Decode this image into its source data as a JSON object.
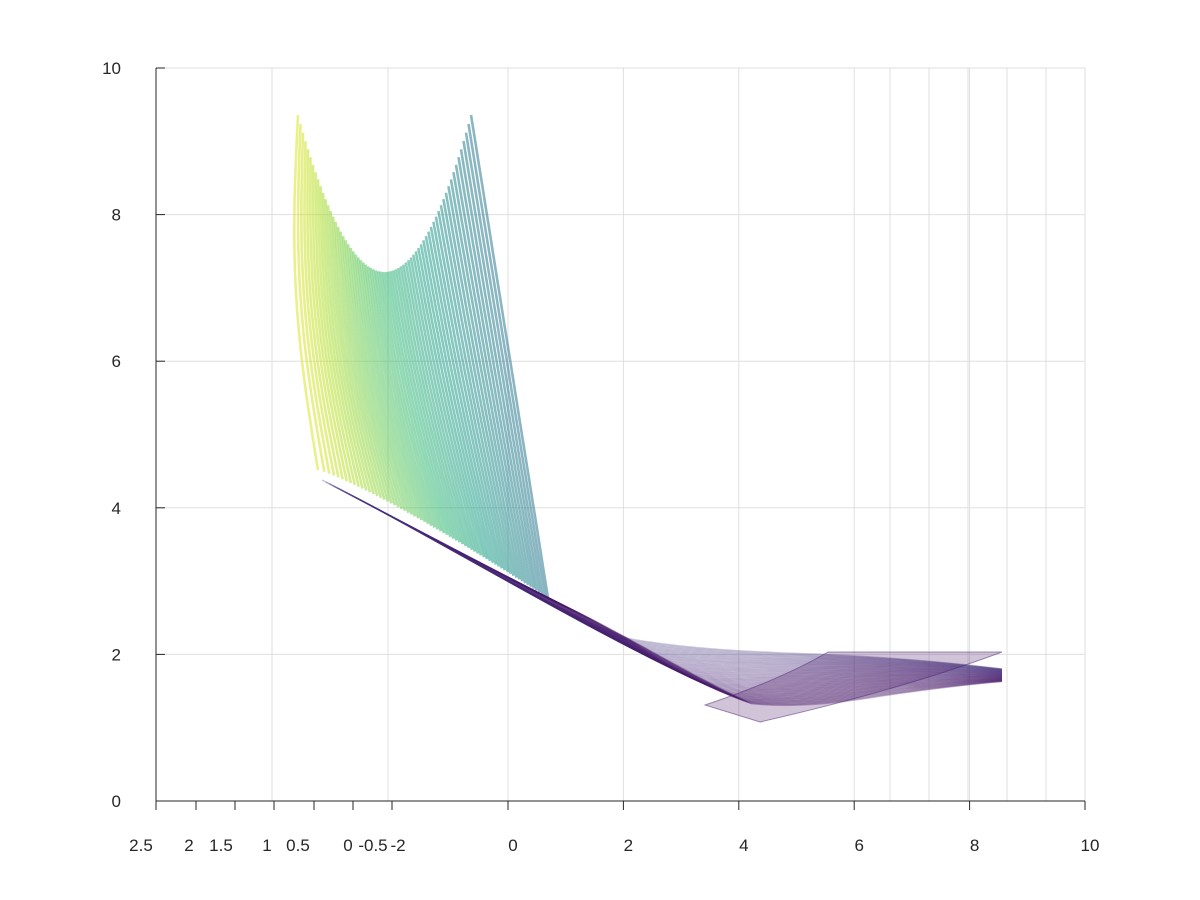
{
  "chart_data": {
    "type": "scatter",
    "title": "",
    "xlabel": "",
    "ylabel": "",
    "grid": true,
    "colormap": "viridis",
    "surface_description_points": {
      "left_arm_top_left": [
        -1.4,
        9.35
      ],
      "left_arm_trough": [
        -0.5,
        7.1
      ],
      "left_arm_top_right": [
        -0.3,
        9.35
      ],
      "upper_fold_corner": [
        0.6,
        2.75
      ],
      "lower_boundary_min": [
        3.4,
        1.0
      ],
      "right_cusp": [
        5.5,
        2.02
      ],
      "right_tip": [
        8.5,
        2.02
      ]
    },
    "ylim": [
      0,
      10
    ],
    "x_ticks_left_section": [
      "2.5",
      "2",
      "1.5",
      "1",
      "0.5",
      "0",
      "-0.5",
      "-2"
    ],
    "x_ticks_right_section": [
      "0",
      "2",
      "4",
      "6",
      "8",
      "10"
    ],
    "y_ticks": [
      "0",
      "2",
      "4",
      "6",
      "8",
      "10"
    ],
    "colors": {
      "viridis_low": "#440154",
      "viridis_mid": "#21918c",
      "viridis_high": "#fde725",
      "axis": "#262626",
      "grid": "#dfdfdf"
    }
  }
}
